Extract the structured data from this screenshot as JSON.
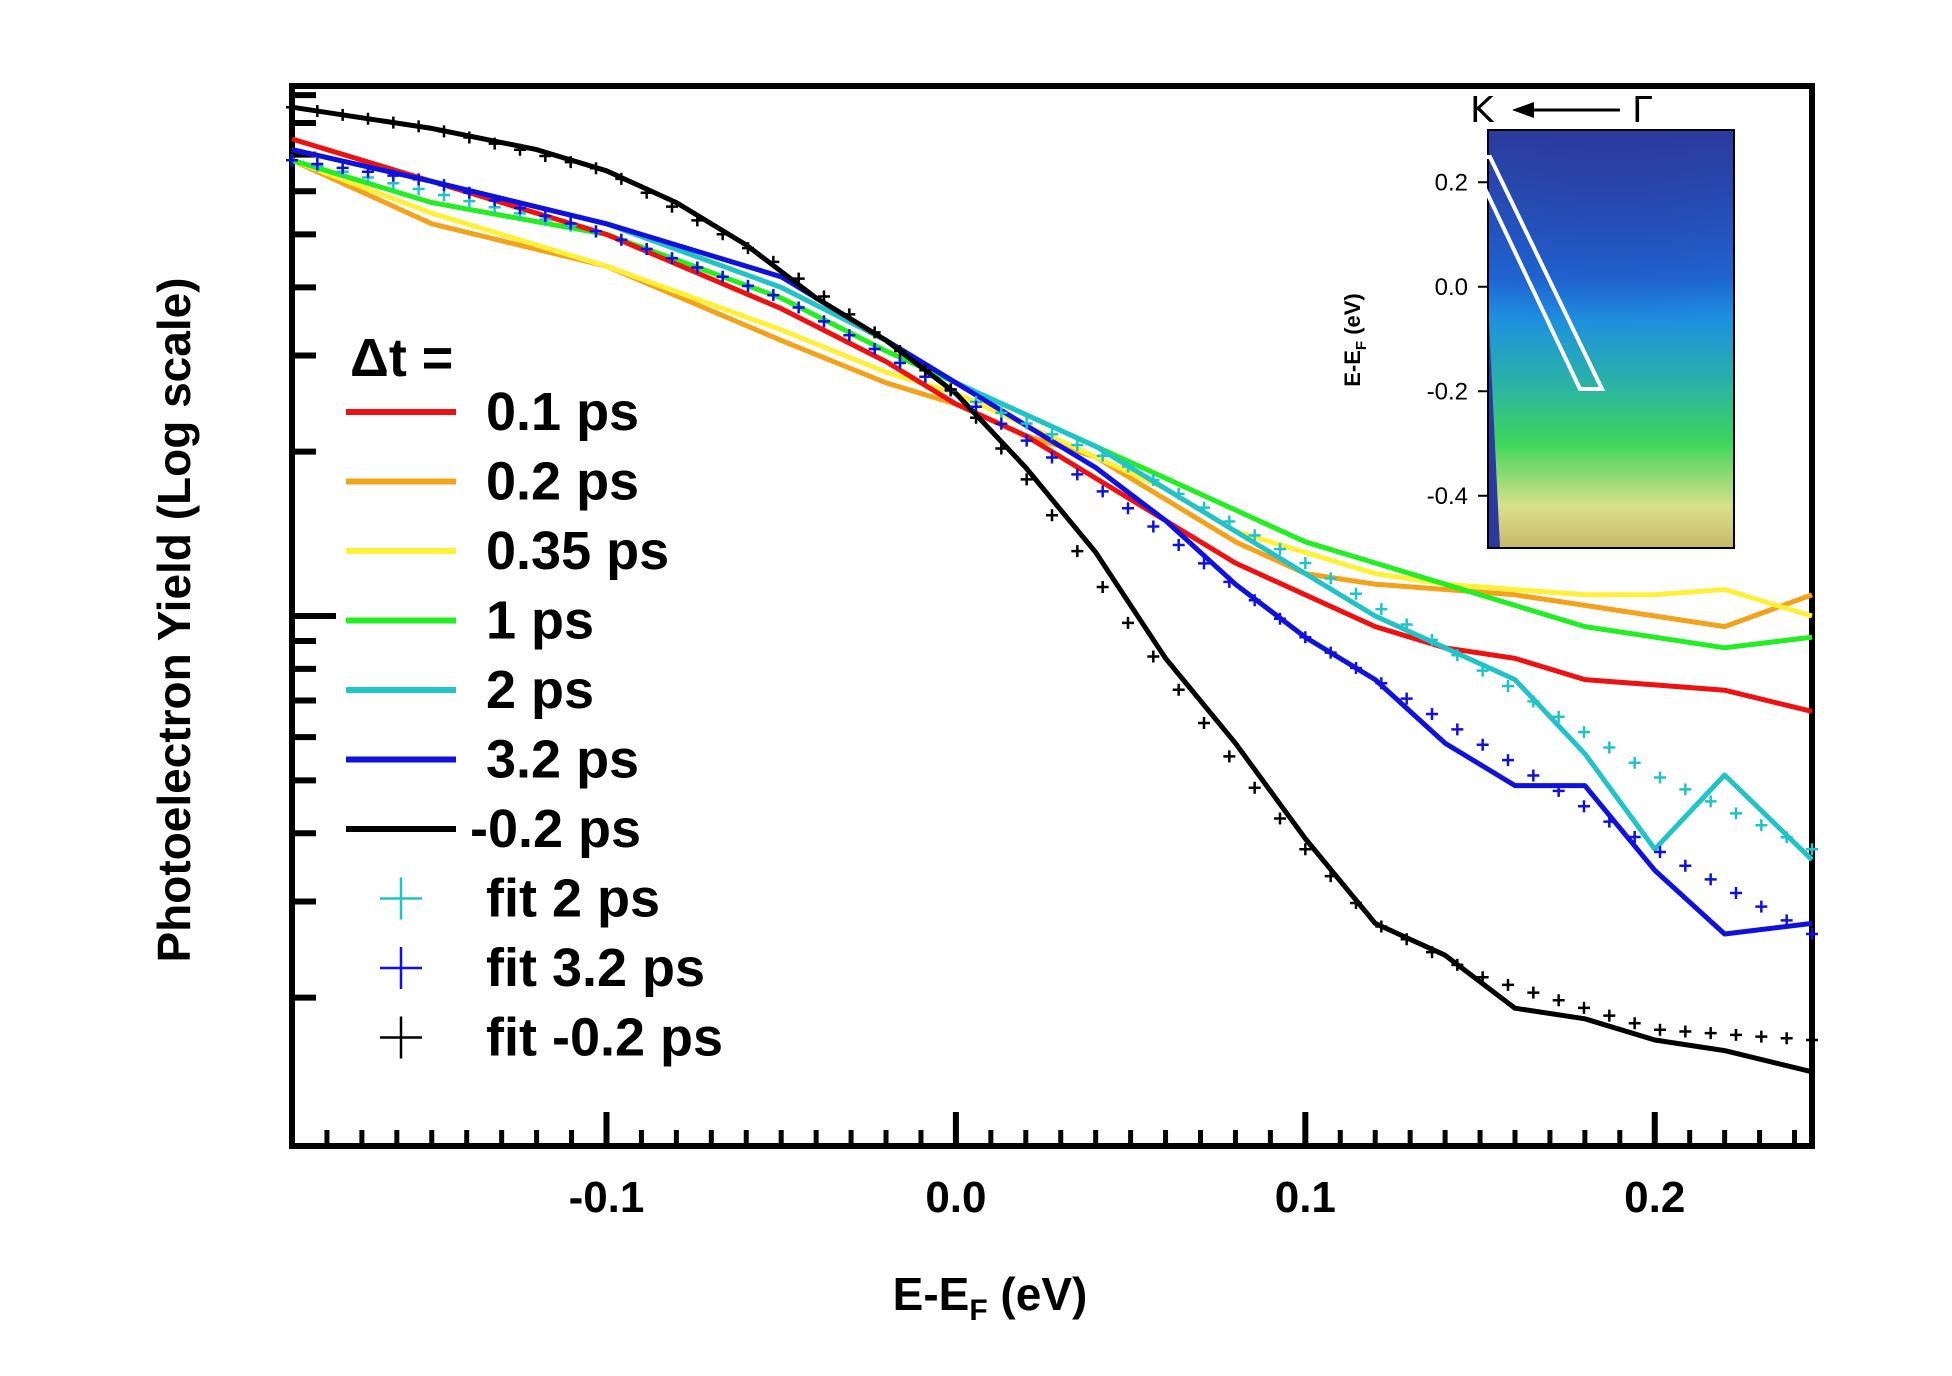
{
  "chart_data": {
    "type": "line",
    "title": "",
    "xlabel_main": "E-E",
    "xlabel_sub": "F",
    "xlabel_unit": " (eV)",
    "ylabel": "Photoelectron Yield (Log scale)",
    "xlim": [
      -0.19,
      0.245
    ],
    "ylim": [
      0,
      1
    ],
    "xticks": [
      -0.1,
      0.0,
      0.1,
      0.2
    ],
    "xtick_labels": [
      "-0.1",
      "0.0",
      "0.1",
      "0.2"
    ],
    "legend_title": "Δt =",
    "legend_position": "left",
    "series": [
      {
        "name": "0.1 ps",
        "style": "line",
        "color": "#ee1111",
        "x": [
          -0.19,
          -0.15,
          -0.1,
          -0.05,
          -0.02,
          0.0,
          0.02,
          0.04,
          0.06,
          0.08,
          0.1,
          0.12,
          0.14,
          0.16,
          0.18,
          0.2,
          0.22,
          0.245
        ],
        "y": [
          0.95,
          0.91,
          0.86,
          0.79,
          0.74,
          0.7,
          0.67,
          0.63,
          0.59,
          0.55,
          0.52,
          0.49,
          0.47,
          0.46,
          0.44,
          0.435,
          0.43,
          0.41
        ]
      },
      {
        "name": "0.2 ps",
        "style": "line",
        "color": "#f5a21b",
        "x": [
          -0.19,
          -0.15,
          -0.1,
          -0.05,
          -0.02,
          0.0,
          0.02,
          0.04,
          0.06,
          0.08,
          0.1,
          0.12,
          0.14,
          0.16,
          0.18,
          0.2,
          0.22,
          0.245
        ],
        "y": [
          0.93,
          0.87,
          0.83,
          0.76,
          0.72,
          0.7,
          0.67,
          0.65,
          0.61,
          0.57,
          0.54,
          0.53,
          0.525,
          0.52,
          0.51,
          0.5,
          0.49,
          0.52
        ]
      },
      {
        "name": "0.35 ps",
        "style": "line",
        "color": "#fff03a",
        "x": [
          -0.19,
          -0.15,
          -0.1,
          -0.05,
          -0.02,
          0.0,
          0.02,
          0.04,
          0.06,
          0.08,
          0.1,
          0.12,
          0.14,
          0.16,
          0.18,
          0.2,
          0.22,
          0.245
        ],
        "y": [
          0.93,
          0.88,
          0.83,
          0.77,
          0.73,
          0.71,
          0.68,
          0.65,
          0.62,
          0.58,
          0.56,
          0.54,
          0.53,
          0.525,
          0.52,
          0.52,
          0.525,
          0.5
        ]
      },
      {
        "name": "1 ps",
        "style": "line",
        "color": "#22ee22",
        "x": [
          -0.19,
          -0.15,
          -0.1,
          -0.05,
          -0.02,
          0.0,
          0.02,
          0.04,
          0.06,
          0.08,
          0.1,
          0.12,
          0.14,
          0.16,
          0.18,
          0.2,
          0.22,
          0.245
        ],
        "y": [
          0.93,
          0.89,
          0.86,
          0.8,
          0.75,
          0.72,
          0.69,
          0.66,
          0.63,
          0.6,
          0.57,
          0.55,
          0.53,
          0.51,
          0.49,
          0.48,
          0.47,
          0.48
        ]
      },
      {
        "name": "2 ps",
        "style": "line",
        "color": "#22c3c8",
        "x": [
          -0.19,
          -0.15,
          -0.1,
          -0.05,
          -0.02,
          0.0,
          0.02,
          0.04,
          0.06,
          0.08,
          0.1,
          0.12,
          0.14,
          0.16,
          0.18,
          0.2,
          0.22,
          0.245
        ],
        "y": [
          0.94,
          0.91,
          0.87,
          0.81,
          0.76,
          0.72,
          0.69,
          0.66,
          0.62,
          0.58,
          0.54,
          0.5,
          0.47,
          0.44,
          0.37,
          0.28,
          0.35,
          0.27
        ]
      },
      {
        "name": "3.2 ps",
        "style": "line",
        "color": "#1111dd",
        "x": [
          -0.19,
          -0.15,
          -0.1,
          -0.05,
          -0.02,
          0.0,
          0.02,
          0.04,
          0.06,
          0.08,
          0.1,
          0.12,
          0.14,
          0.16,
          0.18,
          0.2,
          0.22,
          0.245
        ],
        "y": [
          0.94,
          0.91,
          0.87,
          0.82,
          0.76,
          0.72,
          0.68,
          0.64,
          0.59,
          0.53,
          0.48,
          0.44,
          0.38,
          0.34,
          0.34,
          0.26,
          0.2,
          0.21
        ]
      },
      {
        "name": "-0.2 ps",
        "style": "line",
        "color": "#000000",
        "x": [
          -0.19,
          -0.15,
          -0.12,
          -0.1,
          -0.08,
          -0.06,
          -0.04,
          -0.02,
          0.0,
          0.02,
          0.04,
          0.06,
          0.08,
          0.1,
          0.12,
          0.14,
          0.16,
          0.18,
          0.2,
          0.22,
          0.245
        ],
        "y": [
          0.98,
          0.96,
          0.94,
          0.92,
          0.89,
          0.85,
          0.8,
          0.76,
          0.71,
          0.64,
          0.56,
          0.46,
          0.38,
          0.29,
          0.21,
          0.18,
          0.13,
          0.12,
          0.1,
          0.09,
          0.07
        ]
      },
      {
        "name": "fit 2 ps",
        "style": "marker",
        "color": "#22c3c8",
        "x": [
          -0.19,
          -0.15,
          -0.1,
          -0.05,
          0.0,
          0.05,
          0.1,
          0.15,
          0.2,
          0.245
        ],
        "y": [
          0.93,
          0.9,
          0.86,
          0.8,
          0.71,
          0.64,
          0.55,
          0.45,
          0.35,
          0.28
        ]
      },
      {
        "name": "fit 3.2 ps",
        "style": "marker",
        "color": "#1111dd",
        "x": [
          -0.19,
          -0.15,
          -0.1,
          -0.05,
          0.0,
          0.05,
          0.1,
          0.15,
          0.2,
          0.245
        ],
        "y": [
          0.93,
          0.91,
          0.86,
          0.8,
          0.71,
          0.6,
          0.48,
          0.38,
          0.28,
          0.2
        ]
      },
      {
        "name": "fit -0.2 ps",
        "style": "marker",
        "color": "#000000",
        "x": [
          -0.19,
          -0.15,
          -0.1,
          -0.05,
          -0.02,
          0.0,
          0.02,
          0.05,
          0.08,
          0.1,
          0.12,
          0.15,
          0.18,
          0.2,
          0.245
        ],
        "y": [
          0.98,
          0.96,
          0.92,
          0.83,
          0.76,
          0.71,
          0.63,
          0.49,
          0.36,
          0.28,
          0.21,
          0.16,
          0.13,
          0.11,
          0.1
        ]
      }
    ],
    "inset": {
      "type": "heatmap",
      "title_left": "K",
      "title_right": "Γ",
      "ylabel": "E-E",
      "ylabel_sub": "F",
      "ylabel_unit": " (eV)",
      "yticks": [
        0.2,
        0.0,
        -0.2,
        -0.4
      ],
      "ytick_labels": [
        "0.2",
        "0.0",
        "-0.2",
        "-0.4"
      ],
      "ylim": [
        -0.5,
        0.3
      ],
      "colors": [
        "#2b3a9e",
        "#1e7fe0",
        "#3ecf5a",
        "#e8e28a",
        "#c8b86b"
      ]
    }
  }
}
